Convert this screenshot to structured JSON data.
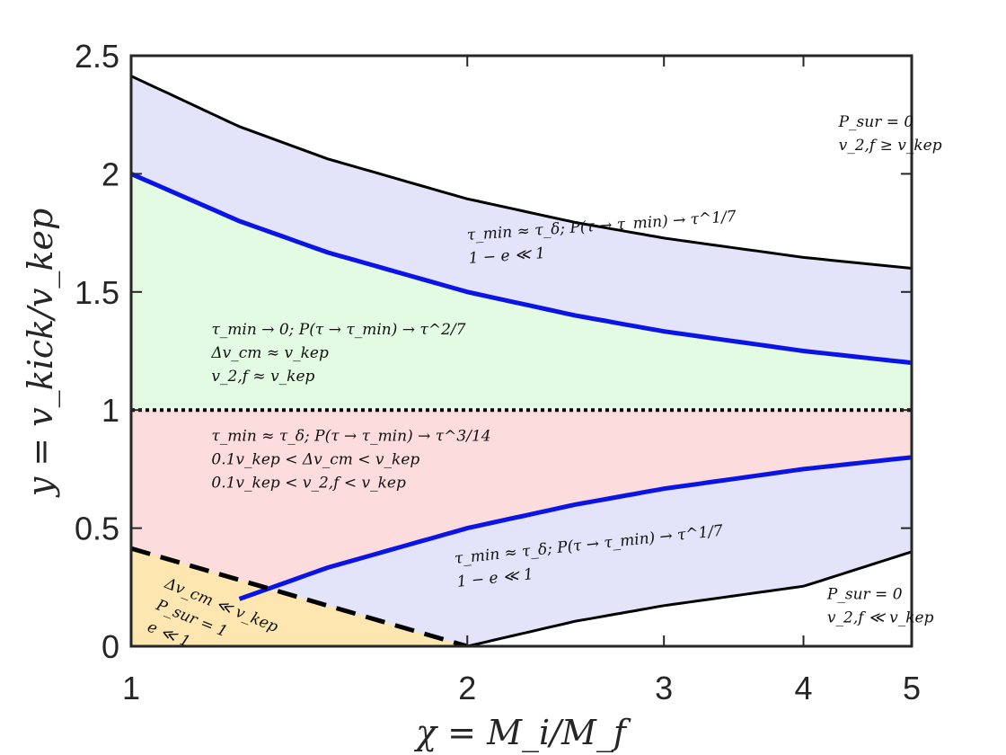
{
  "chart_data": {
    "type": "area",
    "title": "",
    "xlabel": "χ = M_i/M_f",
    "ylabel": "y = v_kick/v_kep",
    "xscale": "log",
    "xlim": [
      1,
      5
    ],
    "ylim": [
      0,
      2.5
    ],
    "grid": false,
    "xticks": [
      1,
      2,
      3,
      4,
      5
    ],
    "xtick_labels": [
      "1",
      "2",
      "3",
      "4",
      "5"
    ],
    "yticks": [
      0,
      0.5,
      1,
      1.5,
      2,
      2.5
    ],
    "ytick_labels": [
      "0",
      "0.5",
      "1",
      "1.5",
      "2",
      "2.5"
    ],
    "colors": {
      "upper_band": "#e3e3f9",
      "green_region": "#e3fae3",
      "pink_region": "#fcdcdc",
      "orange_region": "#fde6b0",
      "blue_curve": "#0a14e6",
      "boundary": "#000000"
    },
    "series": [
      {
        "style": "solid-black",
        "x": [
          1,
          1.25,
          1.5,
          2,
          2.5,
          3,
          4,
          5
        ],
        "y": [
          2.414,
          2.2,
          2.063,
          1.894,
          1.794,
          1.728,
          1.646,
          1.6
        ]
      },
      {
        "style": "solid-blue",
        "x": [
          1,
          1.25,
          1.5,
          2,
          2.5,
          3,
          4,
          5
        ],
        "y": [
          2.0,
          1.8,
          1.667,
          1.5,
          1.4,
          1.333,
          1.25,
          1.2
        ]
      },
      {
        "style": "dotted-black",
        "x": [
          1,
          5
        ],
        "y": [
          1,
          1
        ]
      },
      {
        "style": "solid-blue",
        "x": [
          1.25,
          1.5,
          2,
          2.5,
          3,
          4,
          5
        ],
        "y": [
          0.2,
          0.333,
          0.5,
          0.6,
          0.667,
          0.75,
          0.8
        ]
      },
      {
        "style": "solid-black",
        "x": [
          2,
          2.5,
          3,
          4,
          5
        ],
        "y": [
          0,
          0.106,
          0.172,
          0.254,
          0.4
        ]
      },
      {
        "style": "dashed-black",
        "x": [
          1,
          2
        ],
        "y": [
          0.414,
          0
        ]
      }
    ],
    "annotations": [
      {
        "lines": [
          "P_sur = 0",
          "v_2,f ≥ v_kep"
        ],
        "x": 4.3,
        "y": 2.2
      },
      {
        "lines": [
          "τ_min ≈ τ_δ; P(τ → τ_min) → τ^1/7",
          "1 − e ≪ 1"
        ],
        "x": 2.0,
        "y": 1.72
      },
      {
        "lines": [
          "τ_min → 0; P(τ → τ_min) → τ^2/7",
          "Δv_cm ≈ v_kep",
          "v_2,f ≈ v_kep"
        ],
        "x": 1.18,
        "y": 1.32
      },
      {
        "lines": [
          "τ_min ≈ τ_δ; P(τ → τ_min) → τ^3/14",
          "0.1v_kep < Δv_cm < v_kep",
          "0.1v_kep < v_2,f < v_kep"
        ],
        "x": 1.18,
        "y": 0.87
      },
      {
        "lines": [
          "τ_min ≈ τ_δ; P(τ → τ_min) → τ^1/7",
          "1 − e ≪ 1"
        ],
        "x": 1.95,
        "y": 0.35
      },
      {
        "lines": [
          "P_sur = 0",
          "v_2,f ≪ v_kep"
        ],
        "x": 4.2,
        "y": 0.2
      },
      {
        "lines": [
          "Δv_cm ≪ v_kep",
          "P_sur = 1",
          "e ≪ 1"
        ],
        "x": 1.07,
        "y": 0.25
      }
    ]
  }
}
